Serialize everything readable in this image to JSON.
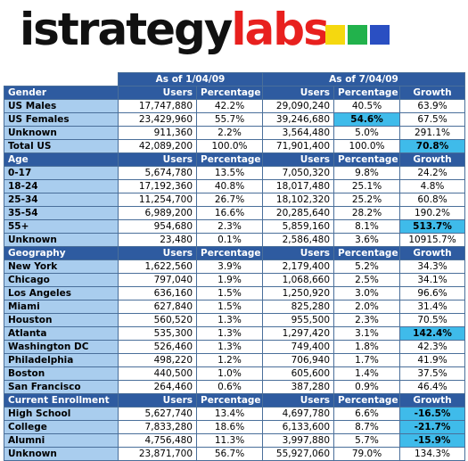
{
  "logo": {
    "text_a": "istrategy",
    "text_b": "labs",
    "squares": [
      "#f5d80f",
      "#22b24c",
      "#2a4fc2"
    ]
  },
  "chart_data": {
    "type": "table",
    "periods": [
      "As of 1/04/09",
      "As of 7/04/09"
    ],
    "sections": [
      {
        "name": "Gender",
        "headers": [
          "Users",
          "Percentage",
          "Users",
          "Percentage",
          "Growth"
        ],
        "rows": [
          {
            "label": "US Males",
            "cells": [
              "17,747,880",
              "42.2%",
              "29,090,240",
              "40.5%",
              "63.9%"
            ]
          },
          {
            "label": "US Females",
            "cells": [
              "23,429,960",
              "55.7%",
              "39,246,680",
              "54.6%",
              "67.5%"
            ]
          },
          {
            "label": "Unknown",
            "cells": [
              "911,360",
              "2.2%",
              "3,564,480",
              "5.0%",
              "291.1%"
            ]
          },
          {
            "label": "Total US",
            "cells": [
              "42,089,200",
              "100.0%",
              "71,901,400",
              "100.0%",
              "70.8%"
            ]
          }
        ]
      },
      {
        "name": "Age",
        "headers": [
          "Users",
          "Percentage",
          "Users",
          "Percentage",
          "Growth"
        ],
        "rows": [
          {
            "label": "0-17",
            "cells": [
              "5,674,780",
              "13.5%",
              "7,050,320",
              "9.8%",
              "24.2%"
            ]
          },
          {
            "label": "18-24",
            "cells": [
              "17,192,360",
              "40.8%",
              "18,017,480",
              "25.1%",
              "4.8%"
            ]
          },
          {
            "label": "25-34",
            "cells": [
              "11,254,700",
              "26.7%",
              "18,102,320",
              "25.2%",
              "60.8%"
            ]
          },
          {
            "label": "35-54",
            "cells": [
              "6,989,200",
              "16.6%",
              "20,285,640",
              "28.2%",
              "190.2%"
            ]
          },
          {
            "label": "55+",
            "cells": [
              "954,680",
              "2.3%",
              "5,859,160",
              "8.1%",
              "513.7%"
            ]
          },
          {
            "label": "Unknown",
            "cells": [
              "23,480",
              "0.1%",
              "2,586,480",
              "3.6%",
              "10915.7%"
            ]
          }
        ]
      },
      {
        "name": "Geography",
        "headers": [
          "Users",
          "Percentage",
          "Users",
          "Percentage",
          "Growth"
        ],
        "rows": [
          {
            "label": "New York",
            "cells": [
              "1,622,560",
              "3.9%",
              "2,179,400",
              "5.2%",
              "34.3%"
            ]
          },
          {
            "label": "Chicago",
            "cells": [
              "797,040",
              "1.9%",
              "1,068,660",
              "2.5%",
              "34.1%"
            ]
          },
          {
            "label": "Los Angeles",
            "cells": [
              "636,160",
              "1.5%",
              "1,250,920",
              "3.0%",
              "96.6%"
            ]
          },
          {
            "label": "Miami",
            "cells": [
              "627,840",
              "1.5%",
              "825,280",
              "2.0%",
              "31.4%"
            ]
          },
          {
            "label": "Houston",
            "cells": [
              "560,520",
              "1.3%",
              "955,500",
              "2.3%",
              "70.5%"
            ]
          },
          {
            "label": "Atlanta",
            "cells": [
              "535,300",
              "1.3%",
              "1,297,420",
              "3.1%",
              "142.4%"
            ]
          },
          {
            "label": "Washington DC",
            "cells": [
              "526,460",
              "1.3%",
              "749,400",
              "1.8%",
              "42.3%"
            ]
          },
          {
            "label": "Philadelphia",
            "cells": [
              "498,220",
              "1.2%",
              "706,940",
              "1.7%",
              "41.9%"
            ]
          },
          {
            "label": "Boston",
            "cells": [
              "440,500",
              "1.0%",
              "605,600",
              "1.4%",
              "37.5%"
            ]
          },
          {
            "label": "San Francisco",
            "cells": [
              "264,460",
              "0.6%",
              "387,280",
              "0.9%",
              "46.4%"
            ]
          }
        ]
      },
      {
        "name": "Current Enrollment",
        "headers": [
          "Users",
          "Percentage",
          "Users",
          "Percentage",
          "Growth"
        ],
        "rows": [
          {
            "label": "High School",
            "cells": [
              "5,627,740",
              "13.4%",
              "4,697,780",
              "6.6%",
              "-16.5%"
            ]
          },
          {
            "label": "College",
            "cells": [
              "7,833,280",
              "18.6%",
              "6,133,600",
              "8.7%",
              "-21.7%"
            ]
          },
          {
            "label": "Alumni",
            "cells": [
              "4,756,480",
              "11.3%",
              "3,997,880",
              "5.7%",
              "-15.9%"
            ]
          },
          {
            "label": "Unknown",
            "cells": [
              "23,871,700",
              "56.7%",
              "55,927,060",
              "79.0%",
              "134.3%"
            ]
          }
        ]
      }
    ],
    "highlight_color": "#3fbbea",
    "highlighted_cells": [
      {
        "section": 0,
        "row": 1,
        "col": 3
      },
      {
        "section": 0,
        "row": 3,
        "col": 4
      },
      {
        "section": 1,
        "row": 4,
        "col": 4
      },
      {
        "section": 2,
        "row": 5,
        "col": 4
      },
      {
        "section": 3,
        "row": 0,
        "col": 4
      },
      {
        "section": 3,
        "row": 1,
        "col": 4
      },
      {
        "section": 3,
        "row": 2,
        "col": 4
      }
    ]
  }
}
